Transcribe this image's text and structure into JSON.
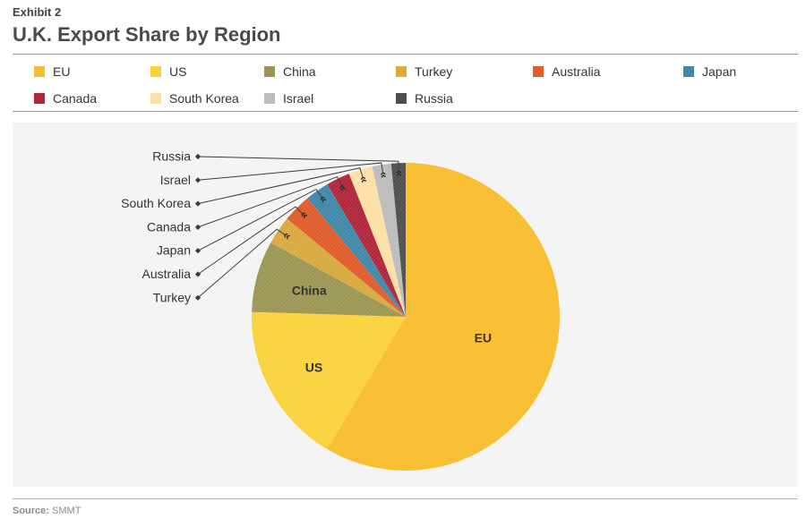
{
  "header": {
    "exhibit": "Exhibit 2",
    "title": "U.K. Export Share by Region"
  },
  "footer": {
    "source_label": "Source:",
    "source_value": "SMMT"
  },
  "chart_data": {
    "type": "pie",
    "title": "U.K. Export Share by Region",
    "legend_position": "top",
    "start": "12 o'clock, clockwise",
    "slices": [
      {
        "label": "EU",
        "value": 58.5,
        "color": "#f8bd2e",
        "label_mode": "inside"
      },
      {
        "label": "US",
        "value": 17.0,
        "color": "#fad23c",
        "label_mode": "inside"
      },
      {
        "label": "China",
        "value": 7.5,
        "color": "#9c9654",
        "label_mode": "inside"
      },
      {
        "label": "Turkey",
        "value": 3.0,
        "color": "#d8a93e",
        "label_mode": "callout"
      },
      {
        "label": "Australia",
        "value": 3.0,
        "color": "#e05c2b",
        "label_mode": "callout"
      },
      {
        "label": "Japan",
        "value": 2.5,
        "color": "#3f88a8",
        "label_mode": "callout"
      },
      {
        "label": "Canada",
        "value": 2.5,
        "color": "#b0273a",
        "label_mode": "callout"
      },
      {
        "label": "South Korea",
        "value": 2.5,
        "color": "#fde0a6",
        "label_mode": "callout"
      },
      {
        "label": "Israel",
        "value": 2.0,
        "color": "#bcbcbc",
        "label_mode": "callout"
      },
      {
        "label": "Russia",
        "value": 1.5,
        "color": "#4f4f4f",
        "label_mode": "callout"
      }
    ]
  }
}
